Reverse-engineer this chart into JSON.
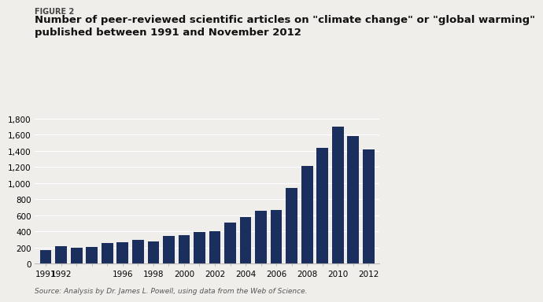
{
  "figure_label": "FIGURE 2",
  "title": "Number of peer-reviewed scientific articles on \"climate change\" or \"global warming\"\npublished between 1991 and November 2012",
  "source_text": "Source: Analysis by Dr. James L. Powell, using data from the Web of Science.",
  "years": [
    1991,
    1992,
    1993,
    1994,
    1995,
    1996,
    1997,
    1998,
    1999,
    2000,
    2001,
    2002,
    2003,
    2004,
    2005,
    2006,
    2007,
    2008,
    2009,
    2010,
    2011,
    2012
  ],
  "values": [
    165,
    220,
    200,
    205,
    260,
    265,
    300,
    280,
    340,
    350,
    395,
    405,
    510,
    580,
    660,
    665,
    940,
    1210,
    1440,
    1700,
    1580,
    1420
  ],
  "bar_color": "#1b2f5e",
  "xtick_show": [
    1991,
    1992,
    1996,
    1998,
    2000,
    2002,
    2004,
    2006,
    2008,
    2010,
    2012
  ],
  "ytick_values": [
    0,
    200,
    400,
    600,
    800,
    1000,
    1200,
    1400,
    1600,
    1800
  ],
  "ytick_labels": [
    "0",
    "200",
    "400",
    "600",
    "800",
    "1,000",
    "1,200",
    "1,400",
    "1,600",
    "1,800"
  ],
  "ylim": [
    0,
    1900
  ],
  "xlim": [
    1990.3,
    2012.7
  ],
  "bg_color": "#f0eeeb",
  "grid_color": "#ffffff",
  "spine_color": "#bbbbbb",
  "bar_width": 0.75,
  "title_fontsize": 9.5,
  "figure_label_fontsize": 7,
  "tick_fontsize": 7.5,
  "source_fontsize": 6.5
}
